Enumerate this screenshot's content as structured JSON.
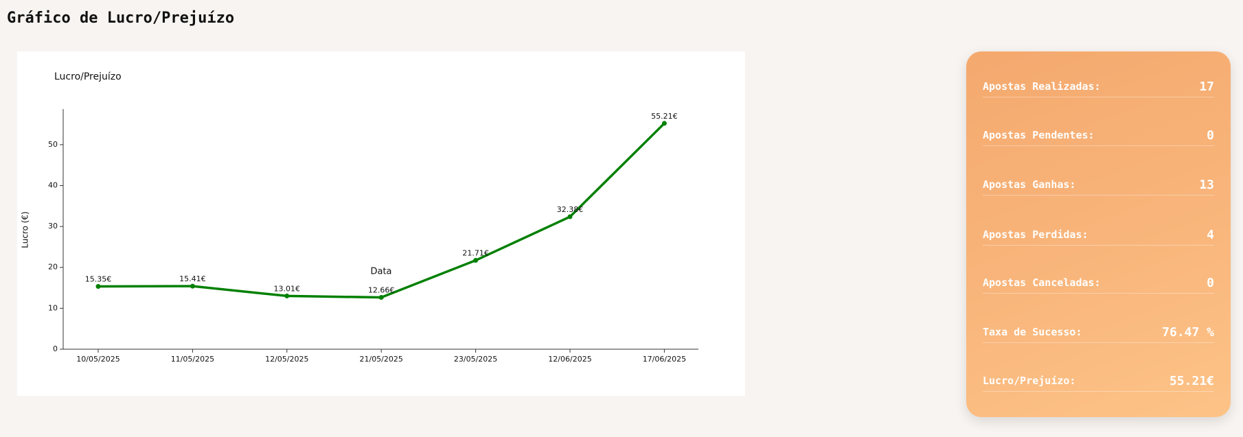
{
  "header": {
    "title": "Gráfico de Lucro/Prejuízo"
  },
  "chart_data": {
    "type": "line",
    "title": "Lucro/Prejuízo",
    "x_label": "Data",
    "y_label": "Lucro (€)",
    "categories": [
      "10/05/2025",
      "11/05/2025",
      "12/05/2025",
      "21/05/2025",
      "23/05/2025",
      "12/06/2025",
      "17/06/2025"
    ],
    "values": [
      15.35,
      15.41,
      13.01,
      12.66,
      21.71,
      32.38,
      55.21
    ],
    "value_labels": [
      "15.35€",
      "15.41€",
      "13.01€",
      "12.66€",
      "21.71€",
      "32.38€",
      "55.21€"
    ],
    "color": "#008000",
    "ylim": [
      0,
      58.7
    ],
    "yticks": [
      0,
      10,
      20,
      30,
      40,
      50
    ]
  },
  "stats": {
    "rows": [
      {
        "label": "Apostas Realizadas:",
        "value": 17
      },
      {
        "label": "Apostas Pendentes:",
        "value": 0
      },
      {
        "label": "Apostas Ganhas:",
        "value": 13
      },
      {
        "label": "Apostas Perdidas:",
        "value": 4
      },
      {
        "label": "Apostas Canceladas:",
        "value": 0
      },
      {
        "label": "Taxa de Sucesso:",
        "value": "76.47 %"
      },
      {
        "label": "Lucro/Prejuízo:",
        "value": "55.21€"
      }
    ]
  }
}
